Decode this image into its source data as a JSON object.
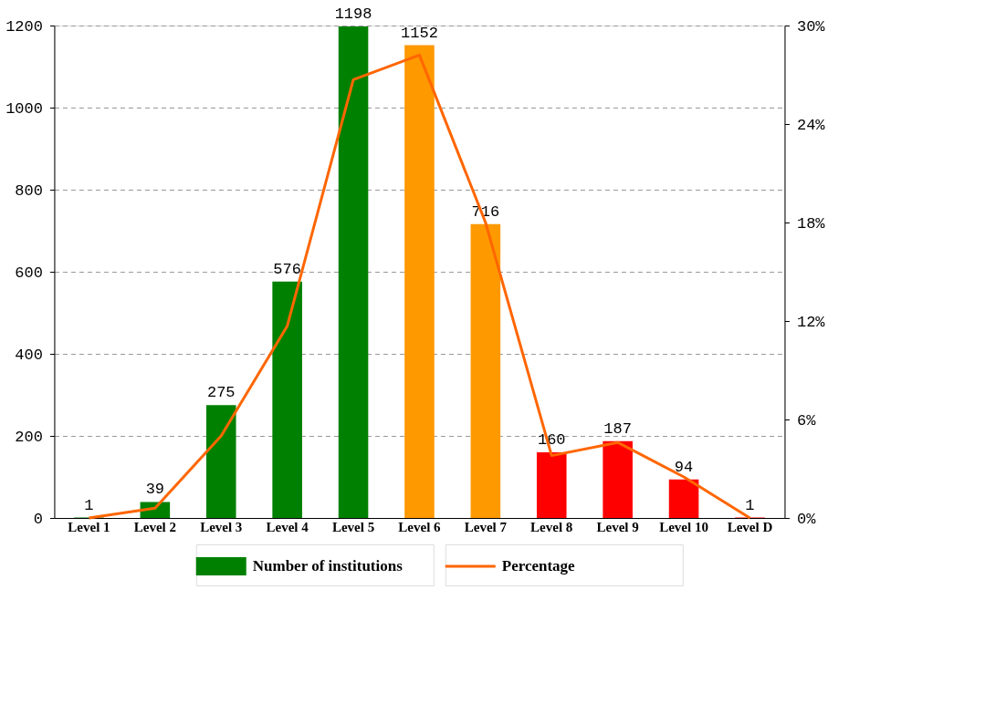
{
  "chart_data": {
    "type": "bar",
    "categories": [
      "Level 1",
      "Level 2",
      "Level 3",
      "Level 4",
      "Level 5",
      "Level 6",
      "Level 7",
      "Level 8",
      "Level 9",
      "Level 10",
      "Level D"
    ],
    "series": [
      {
        "name": "Number of institutions",
        "color": "#008000",
        "colors": [
          "#008000",
          "#008000",
          "#008000",
          "#008000",
          "#008000",
          "#ff9900",
          "#ff9900",
          "#ff0000",
          "#ff0000",
          "#ff0000",
          "#ff0000"
        ],
        "values": [
          1,
          39,
          275,
          576,
          1198,
          1152,
          716,
          160,
          187,
          94,
          1
        ],
        "value_labels": [
          "1",
          "39",
          "275",
          "576",
          "1198",
          "1152",
          "716",
          "160",
          "187",
          "94",
          "1"
        ]
      },
      {
        "name": "Percentage",
        "type": "line",
        "axis": "y2",
        "color": "#ff6600",
        "values": [
          0,
          0.6,
          5,
          11.7,
          26.7,
          28.2,
          18,
          3.8,
          4.6,
          2.5,
          0
        ]
      }
    ],
    "ylim": [
      0,
      1200
    ],
    "yticks": [
      0,
      200,
      400,
      600,
      800,
      1000,
      1200
    ],
    "y2lim": [
      0,
      30
    ],
    "y2ticks": [
      {
        "value": 0,
        "label": "0%"
      },
      {
        "value": 6,
        "label": "6%"
      },
      {
        "value": 12,
        "label": "12%"
      },
      {
        "value": 18,
        "label": "18%"
      },
      {
        "value": 24,
        "label": "24%"
      },
      {
        "value": 30,
        "label": "30%"
      }
    ],
    "grid": "y",
    "legend": "bottom",
    "marker": "none",
    "line_style": "solid"
  }
}
